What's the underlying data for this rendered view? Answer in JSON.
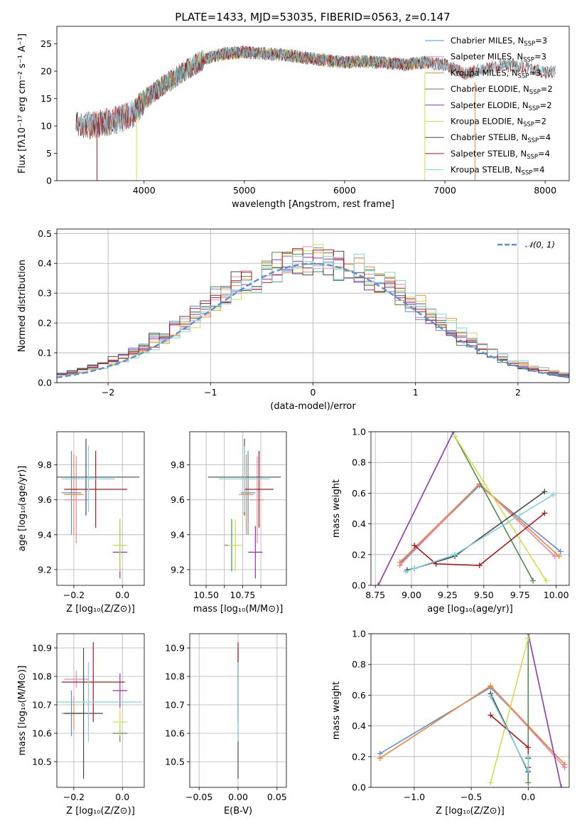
{
  "figure_title": "PLATE=1433, MJD=53035, FIBERID=0563, z=0.147",
  "colors": {
    "Chabrier MILES": "#5b8fd1",
    "Salpeter MILES": "#e887b0",
    "Kroupa MILES": "#ee8b3a",
    "Chabrier ELODIE": "#4f8a4f",
    "Salpeter ELODIE": "#8f35b0",
    "Kroupa ELODIE": "#c8e34a",
    "Chabrier STELIB": "#4a4a4a",
    "Salpeter STELIB": "#b01818",
    "Kroupa STELIB": "#7fd4e0",
    "normal": "#5b8fd1"
  },
  "chart_data": [
    {
      "id": "spectrum",
      "type": "line",
      "xlabel": "wavelength [Angstrom, rest frame]",
      "ylabel": "Flux [fλ10⁻¹⁷ erg cm⁻² s⁻¹ A⁻¹]",
      "xlim": [
        3130,
        8240
      ],
      "ylim": [
        0,
        28.2
      ],
      "xticks": [
        4000,
        5000,
        6000,
        7000,
        8000
      ],
      "yticks": [
        0,
        5,
        10,
        15,
        20,
        25
      ],
      "grid": false,
      "legend": "top-right",
      "continuum": {
        "x": [
          3320,
          3500,
          3700,
          3900,
          4000,
          4200,
          4400,
          4600,
          4800,
          5000,
          5200,
          5400,
          5600,
          5800,
          6000,
          6200,
          6400,
          6600,
          6800,
          7000,
          7200,
          7400,
          7600,
          7800,
          8000,
          8100
        ],
        "y": [
          10.0,
          10.2,
          11.0,
          12.2,
          14.8,
          17.5,
          20.0,
          22.2,
          23.2,
          23.5,
          23.2,
          23.0,
          22.5,
          22.0,
          21.6,
          21.8,
          21.5,
          21.2,
          21.6,
          21.2,
          19.5,
          20.5,
          21.0,
          20.8,
          19.8,
          20.0
        ]
      },
      "series": [
        {
          "legend": "Chabrier MILES, N_SSP=3",
          "x_range": [
            3450,
            7300
          ]
        },
        {
          "legend": "Salpeter MILES, N_SSP=3",
          "x_range": [
            3450,
            7300
          ]
        },
        {
          "legend": "Kroupa MILES, N_SSP=3",
          "x_range": [
            3450,
            7300
          ]
        },
        {
          "legend": "Chabrier ELODIE, N_SSP=2",
          "x_range": [
            3900,
            6800
          ]
        },
        {
          "legend": "Salpeter ELODIE, N_SSP=2",
          "x_range": [
            3900,
            6800
          ]
        },
        {
          "legend": "Kroupa ELODIE, N_SSP=2",
          "x_range": [
            3900,
            6800
          ]
        },
        {
          "legend": "Chabrier STELIB, N_SSP=4",
          "x_range": [
            3320,
            8100
          ]
        },
        {
          "legend": "Salpeter STELIB, N_SSP=4",
          "x_range": [
            3320,
            8100
          ]
        },
        {
          "legend": "Kroupa STELIB, N_SSP=4",
          "x_range": [
            3320,
            8100
          ]
        }
      ]
    },
    {
      "id": "residuals",
      "type": "line",
      "xlabel": "(data-model)/error",
      "ylabel": "Normed distribution",
      "xlim": [
        -2.5,
        2.5
      ],
      "ylim": [
        0,
        0.515
      ],
      "xticks": [
        -2,
        -1,
        0,
        1,
        2
      ],
      "yticks": [
        0.0,
        0.1,
        0.2,
        0.3,
        0.4,
        0.5
      ],
      "grid": true,
      "legend": "top-right",
      "normal_legend": "𝒩(0, 1)",
      "bin_width": 0.1
    },
    {
      "id": "age_vs_Z",
      "type": "scatter",
      "xlabel": "Z [log₁₀(Z/Z⊙)]",
      "ylabel": "age [log₁₀(age/yr)]",
      "xlim": [
        -0.27,
        0.09
      ],
      "ylim": [
        9.11,
        9.99
      ],
      "xticks": [
        -0.2,
        0.0
      ],
      "yticks": [
        9.2,
        9.4,
        9.6,
        9.8
      ],
      "grid": true,
      "points": [
        {
          "model": "Chabrier MILES",
          "x": -0.21,
          "xerr": 0.04,
          "y": 9.64,
          "yerr": 0.24
        },
        {
          "model": "Salpeter MILES",
          "x": -0.19,
          "xerr": 0.05,
          "y": 9.6,
          "yerr": 0.25
        },
        {
          "model": "Kroupa MILES",
          "x": -0.2,
          "xerr": 0.04,
          "y": 9.63,
          "yerr": 0.23
        },
        {
          "model": "Chabrier ELODIE",
          "x": -0.01,
          "xerr": 0.03,
          "y": 9.34,
          "yerr": 0.15
        },
        {
          "model": "Salpeter ELODIE",
          "x": -0.01,
          "xerr": 0.03,
          "y": 9.3,
          "yerr": 0.15
        },
        {
          "model": "Kroupa ELODIE",
          "x": -0.01,
          "xerr": 0.03,
          "y": 9.34,
          "yerr": 0.15
        },
        {
          "model": "Chabrier STELIB",
          "x": -0.15,
          "xerr": 0.22,
          "y": 9.73,
          "yerr": 0.22
        },
        {
          "model": "Salpeter STELIB",
          "x": -0.11,
          "xerr": 0.13,
          "y": 9.66,
          "yerr": 0.22
        },
        {
          "model": "Kroupa STELIB",
          "x": -0.14,
          "xerr": 0.11,
          "y": 9.72,
          "yerr": 0.19
        }
      ]
    },
    {
      "id": "age_vs_mass",
      "type": "scatter",
      "xlabel": "mass [log₁₀(M/M⊙)]",
      "xlim": [
        10.41,
        10.94
      ],
      "ylim": [
        9.11,
        9.99
      ],
      "xticks": [
        10.5,
        10.6,
        10.7,
        10.8
      ],
      "xticklabels": [
        "10.50",
        "",
        "10.75",
        ""
      ],
      "yticks": [
        9.2,
        9.4,
        9.6,
        9.8
      ],
      "grid": true,
      "points": [
        {
          "model": "Chabrier MILES",
          "x": 10.73,
          "xerr": 0.04,
          "y": 9.64,
          "yerr": 0.24
        },
        {
          "model": "Salpeter MILES",
          "x": 10.78,
          "xerr": 0.04,
          "y": 9.6,
          "yerr": 0.25
        },
        {
          "model": "Kroupa MILES",
          "x": 10.72,
          "xerr": 0.04,
          "y": 9.63,
          "yerr": 0.23
        },
        {
          "model": "Chabrier ELODIE",
          "x": 10.64,
          "xerr": 0.04,
          "y": 9.34,
          "yerr": 0.15
        },
        {
          "model": "Salpeter ELODIE",
          "x": 10.77,
          "xerr": 0.04,
          "y": 9.3,
          "yerr": 0.15
        },
        {
          "model": "Kroupa ELODIE",
          "x": 10.66,
          "xerr": 0.04,
          "y": 9.34,
          "yerr": 0.15
        },
        {
          "model": "Chabrier STELIB",
          "x": 10.71,
          "xerr": 0.2,
          "y": 9.73,
          "yerr": 0.22
        },
        {
          "model": "Salpeter STELIB",
          "x": 10.79,
          "xerr": 0.08,
          "y": 9.66,
          "yerr": 0.22
        },
        {
          "model": "Kroupa STELIB",
          "x": 10.71,
          "xerr": 0.14,
          "y": 9.72,
          "yerr": 0.19
        }
      ]
    },
    {
      "id": "weight_vs_age",
      "type": "line",
      "xlabel": "age [log₁₀(age/yr)]",
      "ylabel": "mass weight",
      "xlim": [
        8.72,
        10.09
      ],
      "ylim": [
        0,
        1.0
      ],
      "xticks": [
        8.75,
        9.0,
        9.25,
        9.5,
        9.75,
        10.0
      ],
      "xticklabels": [
        "8.75",
        "9.00",
        "9.25",
        "9.50",
        "9.75",
        "10.00"
      ],
      "yticks": [
        0.0,
        0.2,
        0.4,
        0.6,
        0.8,
        1.0
      ],
      "grid": true,
      "series": [
        {
          "model": "Chabrier MILES",
          "x": [
            8.93,
            9.47,
            10.03
          ],
          "y": [
            0.15,
            0.65,
            0.22
          ]
        },
        {
          "model": "Salpeter MILES",
          "x": [
            8.92,
            9.47,
            9.99
          ],
          "y": [
            0.13,
            0.66,
            0.19
          ]
        },
        {
          "model": "Kroupa MILES",
          "x": [
            8.92,
            9.47,
            10.02
          ],
          "y": [
            0.15,
            0.66,
            0.19
          ]
        },
        {
          "model": "Chabrier ELODIE",
          "x": [
            9.3,
            9.84
          ],
          "y": [
            0.97,
            0.03
          ]
        },
        {
          "model": "Salpeter ELODIE",
          "x": [
            8.77,
            9.29
          ],
          "y": [
            0.0,
            1.0
          ]
        },
        {
          "model": "Kroupa ELODIE",
          "x": [
            9.3,
            9.93
          ],
          "y": [
            0.97,
            0.03
          ]
        },
        {
          "model": "Chabrier STELIB",
          "x": [
            8.97,
            9.02,
            9.3,
            9.92
          ],
          "y": [
            0.1,
            0.11,
            0.19,
            0.61
          ]
        },
        {
          "model": "Salpeter STELIB",
          "x": [
            9.02,
            9.17,
            9.47,
            9.92
          ],
          "y": [
            0.26,
            0.14,
            0.13,
            0.47
          ]
        },
        {
          "model": "Kroupa STELIB",
          "x": [
            8.96,
            9.02,
            9.3,
            9.98
          ],
          "y": [
            0.09,
            0.11,
            0.2,
            0.59
          ]
        }
      ]
    },
    {
      "id": "mass_vs_Z",
      "type": "scatter",
      "xlabel": "Z [log₁₀(Z/Z⊙)]",
      "ylabel": "mass [log₁₀(M/M⊙)]",
      "xlim": [
        -0.27,
        0.09
      ],
      "ylim": [
        10.41,
        10.95
      ],
      "xticks": [
        -0.2,
        0.0
      ],
      "yticks": [
        10.5,
        10.6,
        10.7,
        10.8,
        10.9
      ],
      "grid": true,
      "points": [
        {
          "model": "Chabrier MILES",
          "x": -0.21,
          "xerr": 0.04,
          "y": 10.67,
          "yerr": 0.08
        },
        {
          "model": "Salpeter MILES",
          "x": -0.19,
          "xerr": 0.05,
          "y": 10.79,
          "yerr": 0.03
        },
        {
          "model": "Kroupa MILES",
          "x": -0.2,
          "xerr": 0.04,
          "y": 10.67,
          "yerr": 0.06
        },
        {
          "model": "Chabrier ELODIE",
          "x": -0.01,
          "xerr": 0.03,
          "y": 10.6,
          "yerr": 0.03
        },
        {
          "model": "Salpeter ELODIE",
          "x": -0.01,
          "xerr": 0.03,
          "y": 10.75,
          "yerr": 0.06
        },
        {
          "model": "Kroupa ELODIE",
          "x": -0.01,
          "xerr": 0.03,
          "y": 10.64,
          "yerr": 0.05
        },
        {
          "model": "Chabrier STELIB",
          "x": -0.16,
          "xerr": 0.08,
          "y": 10.67,
          "yerr": 0.23
        },
        {
          "model": "Salpeter STELIB",
          "x": -0.12,
          "xerr": 0.13,
          "y": 10.78,
          "yerr": 0.14
        },
        {
          "model": "Kroupa STELIB",
          "x": -0.14,
          "xerr": 0.22,
          "y": 10.71,
          "yerr": 0.14
        }
      ]
    },
    {
      "id": "mass_vs_EBV",
      "type": "scatter",
      "xlabel": "E(B-V)",
      "xlim": [
        -0.062,
        0.062
      ],
      "ylim": [
        10.41,
        10.95
      ],
      "xticks": [
        -0.05,
        0.0,
        0.05
      ],
      "xticklabels": [
        "−0.05",
        "0.00",
        "0.05"
      ],
      "yticks": [
        10.5,
        10.6,
        10.7,
        10.8,
        10.9
      ],
      "grid": true,
      "points": [
        {
          "model": "Chabrier STELIB",
          "x": 0.0,
          "xerr": 0.0,
          "y": 10.67,
          "yerr": 0.23
        },
        {
          "model": "Salpeter STELIB",
          "x": 0.0,
          "xerr": 0.0,
          "y": 10.78,
          "yerr": 0.14
        },
        {
          "model": "Kroupa STELIB",
          "x": 0.0,
          "xerr": 0.0,
          "y": 10.71,
          "yerr": 0.14
        }
      ]
    },
    {
      "id": "weight_vs_Z",
      "type": "line",
      "xlabel": "Z [log₁₀(Z/Z⊙)]",
      "ylabel": "mass weight",
      "xlim": [
        -1.38,
        0.36
      ],
      "ylim": [
        0,
        1.0
      ],
      "xticks": [
        -1.0,
        -0.5,
        0.0
      ],
      "xticklabels": [
        "−1.0",
        "−0.5",
        "0.0"
      ],
      "yticks": [
        0.0,
        0.2,
        0.4,
        0.6,
        0.8,
        1.0
      ],
      "grid": true,
      "series": [
        {
          "model": "Chabrier MILES",
          "x": [
            -1.3,
            -0.33,
            0.32
          ],
          "y": [
            0.22,
            0.65,
            0.15
          ]
        },
        {
          "model": "Salpeter MILES",
          "x": [
            -1.3,
            -0.33,
            0.32
          ],
          "y": [
            0.19,
            0.66,
            0.13
          ]
        },
        {
          "model": "Kroupa MILES",
          "x": [
            -1.3,
            -0.33,
            0.32
          ],
          "y": [
            0.19,
            0.66,
            0.15
          ]
        },
        {
          "model": "Chabrier ELODIE",
          "x": [
            0.0,
            0.0
          ],
          "y": [
            0.97,
            0.03
          ]
        },
        {
          "model": "Salpeter ELODIE",
          "x": [
            0.0,
            0.29
          ],
          "y": [
            1.0,
            0.0
          ]
        },
        {
          "model": "Kroupa ELODIE",
          "x": [
            -0.33,
            0.0
          ],
          "y": [
            0.03,
            0.97
          ]
        },
        {
          "model": "Chabrier STELIB",
          "x": [
            -0.33,
            0.0,
            0.0
          ],
          "y": [
            0.61,
            0.1,
            0.19
          ]
        },
        {
          "model": "Salpeter STELIB",
          "x": [
            -0.33,
            0.0,
            0.0
          ],
          "y": [
            0.47,
            0.26,
            0.13
          ]
        },
        {
          "model": "Kroupa STELIB",
          "x": [
            -0.33,
            0.0,
            0.0
          ],
          "y": [
            0.59,
            0.11,
            0.2
          ]
        }
      ]
    }
  ]
}
